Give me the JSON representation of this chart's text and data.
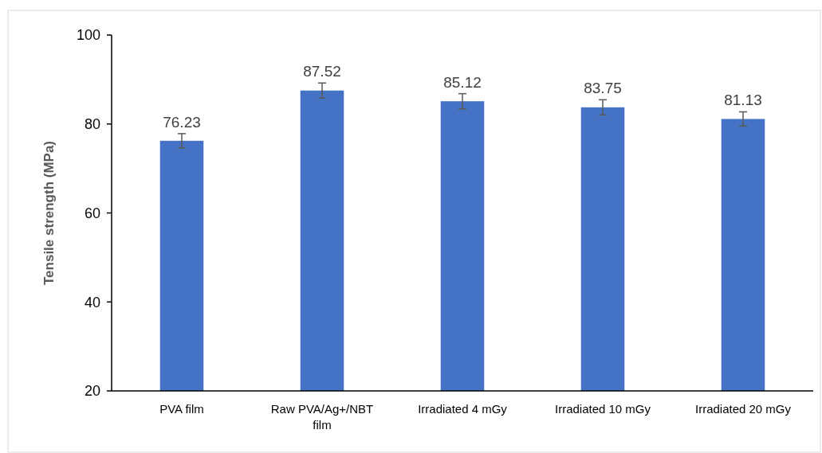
{
  "chart_data": {
    "type": "bar",
    "ylabel": "Tensile strength (MPa)",
    "categories": [
      "PVA film",
      "Raw PVA/Ag+/NBT film",
      "Irradiated 4 mGy",
      "Irradiated 10 mGy",
      "Irradiated 20 mGy"
    ],
    "values": [
      76.23,
      87.52,
      85.12,
      83.75,
      81.13
    ],
    "errors": [
      1.6,
      1.7,
      1.7,
      1.7,
      1.6
    ],
    "color": "#4472c4",
    "ylim": [
      20,
      100
    ],
    "yticks": [
      20,
      40,
      60,
      80,
      100
    ],
    "data_labels": true
  }
}
